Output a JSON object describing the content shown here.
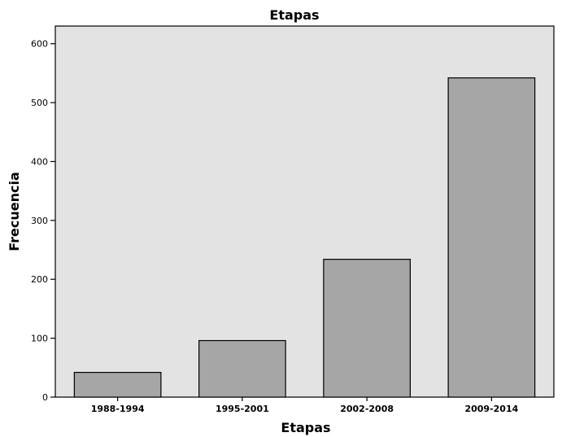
{
  "chart_data": {
    "type": "bar",
    "title": "Etapas",
    "xlabel": "Etapas",
    "ylabel": "Frecuencia",
    "categories": [
      "1988-1994",
      "1995-2001",
      "2002-2008",
      "2009-2014"
    ],
    "values": [
      42,
      96,
      234,
      542
    ],
    "ylim": [
      0,
      630
    ],
    "yticks": [
      0,
      100,
      200,
      300,
      400,
      500,
      600
    ],
    "grid": false,
    "legend": "none",
    "colors": {
      "plot_background": "#e3e3e3",
      "bar_fill": "#a6a6a6",
      "bar_stroke": "#000000",
      "axis": "#000000"
    }
  }
}
